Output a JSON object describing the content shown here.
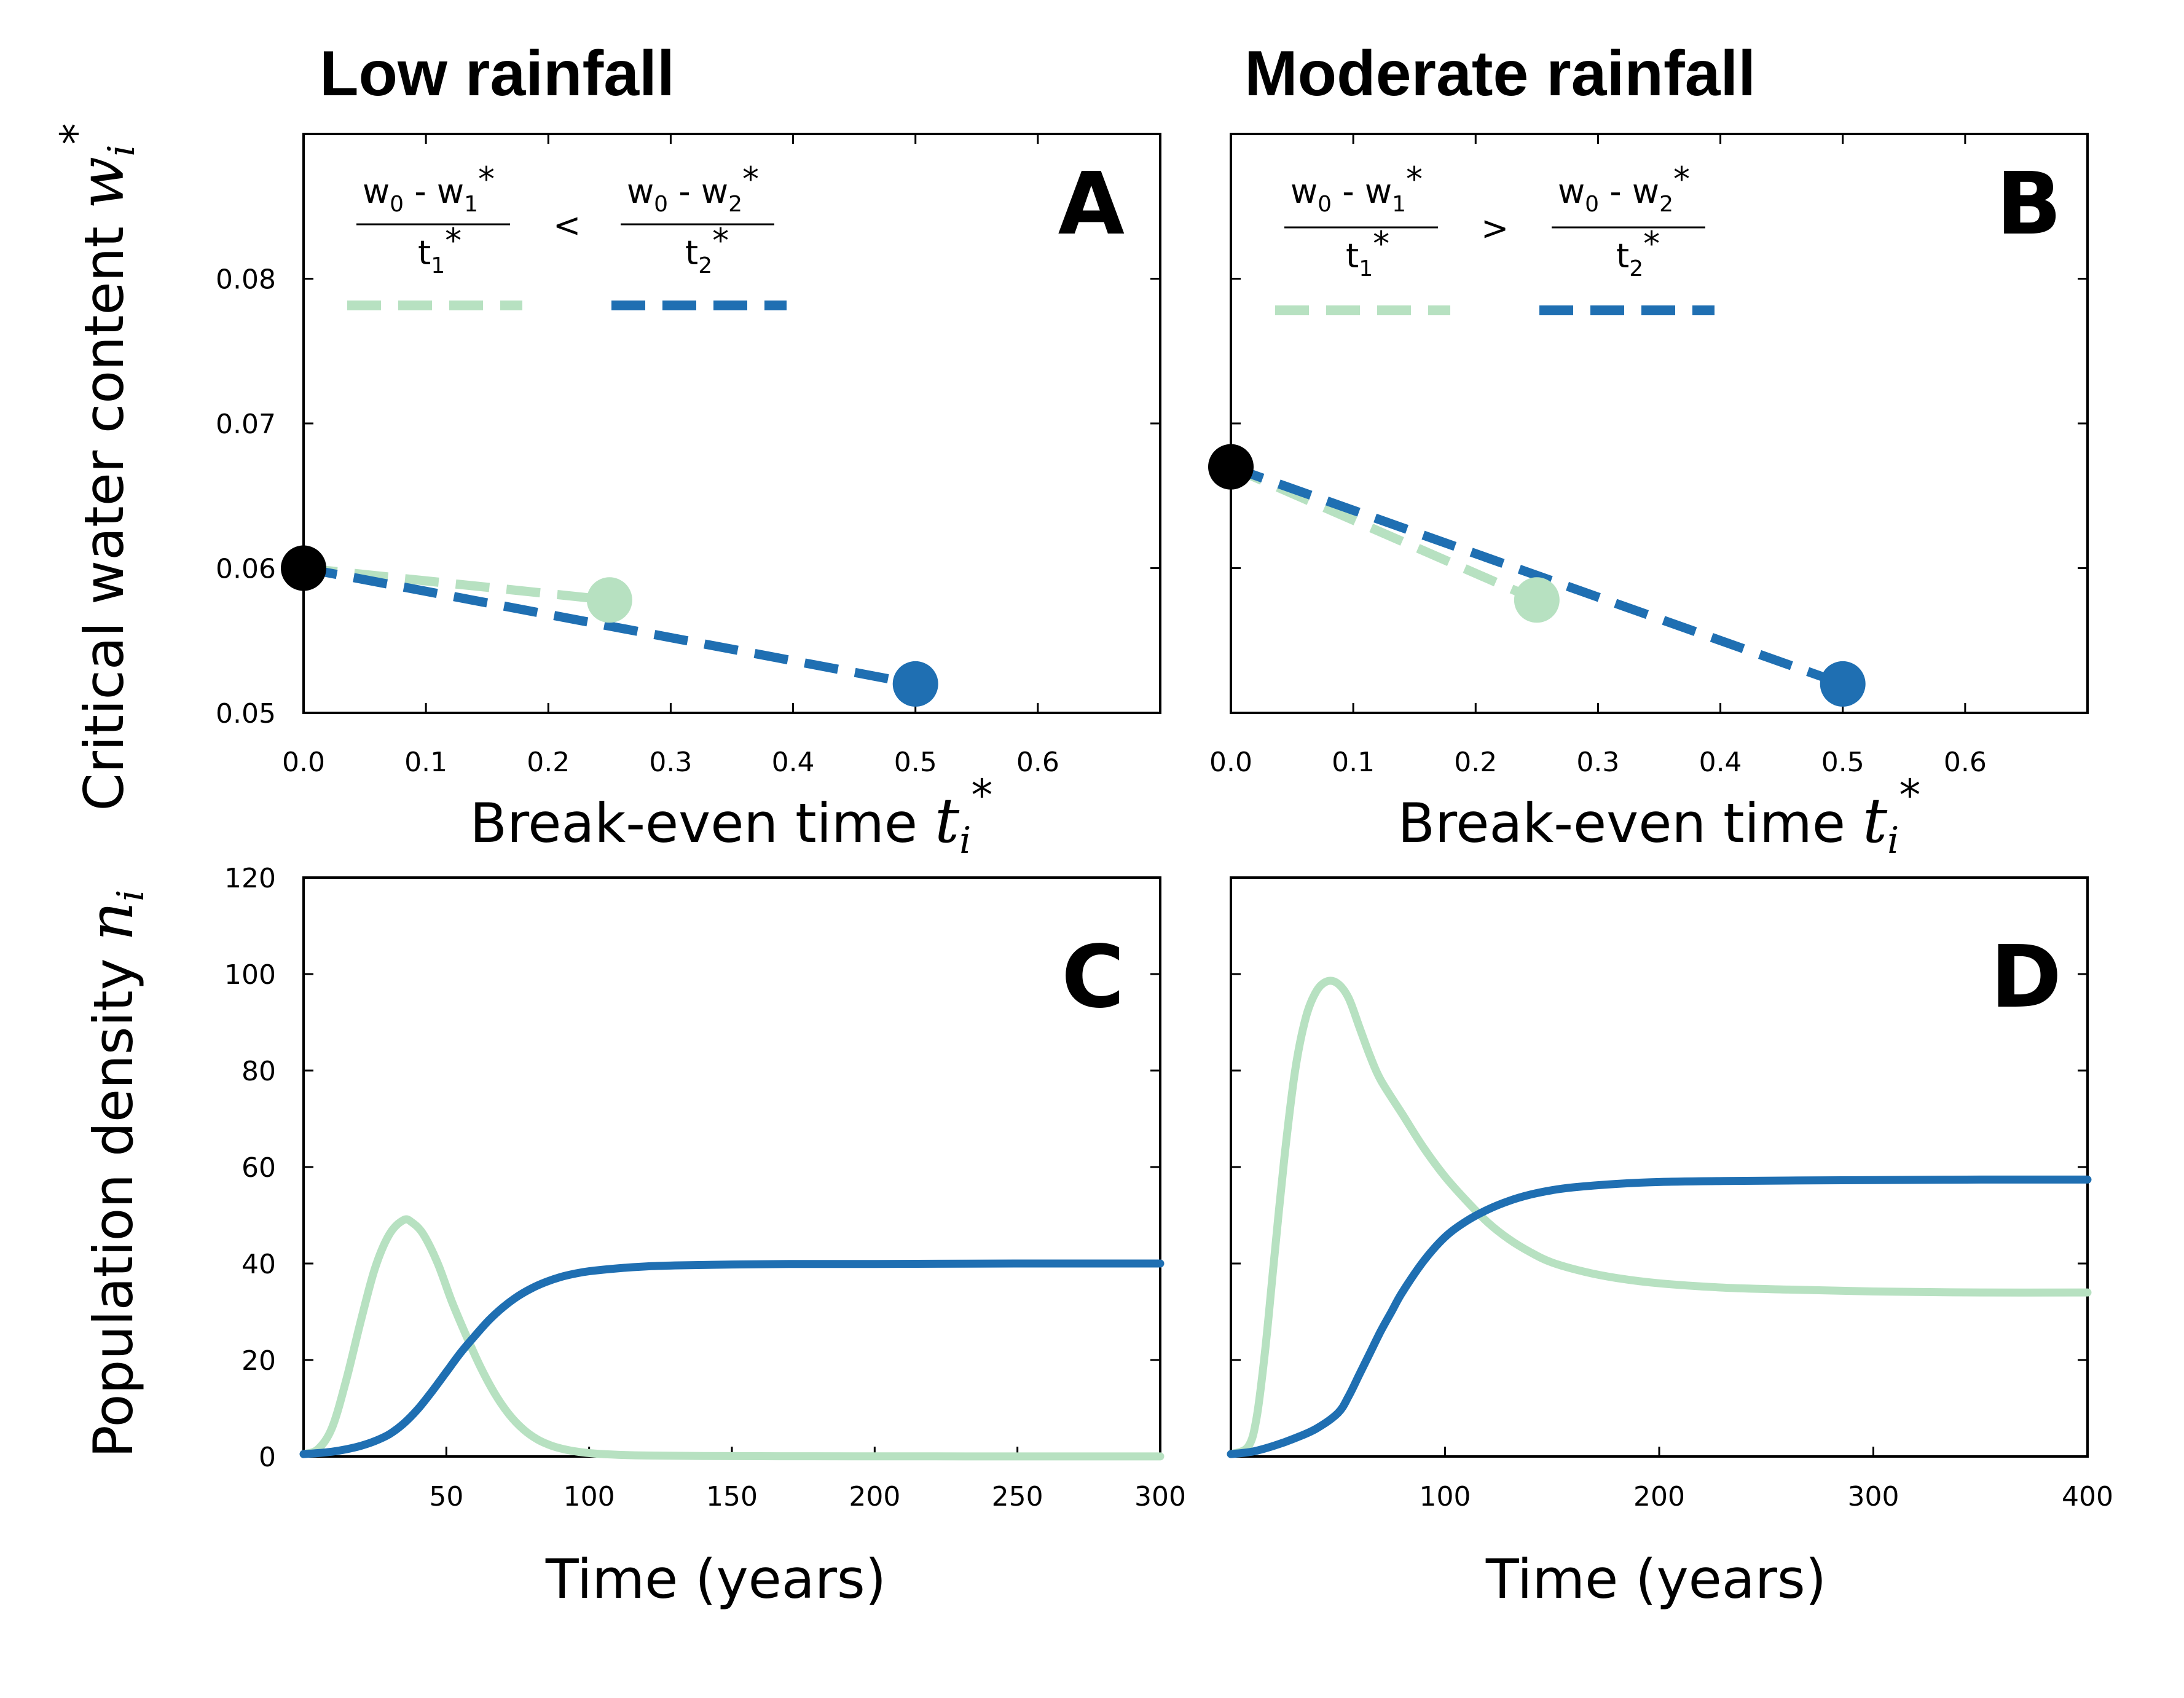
{
  "titles": {
    "left": "Low rainfall",
    "right": "Moderate rainfall"
  },
  "axis_labels": {
    "top_y": "Critical water content",
    "top_y_symbol": "w",
    "top_y_sub": "i",
    "top_y_sup": "*",
    "top_x": "Break-even time",
    "top_x_symbol": "t",
    "top_x_sub": "i",
    "top_x_sup": "*",
    "bottom_y": "Population density",
    "bottom_y_symbol": "n",
    "bottom_y_sub": "i",
    "bottom_x": "Time (years)"
  },
  "legend": {
    "frac1": {
      "num_a": "w",
      "num_a_sub": "0",
      "num_b": " - w",
      "num_b_sub": "1",
      "num_sup": "*",
      "den": "t",
      "den_sub": "1",
      "den_sup": "*"
    },
    "frac2": {
      "num_a": "w",
      "num_a_sub": "0",
      "num_b": " - w",
      "num_b_sub": "2",
      "num_sup": "*",
      "den": "t",
      "den_sub": "2",
      "den_sup": "*"
    },
    "compare_A": "<",
    "compare_B": ">"
  },
  "colors": {
    "species1": "#b7e1c1",
    "species2": "#1f6fb2",
    "origin": "#000000"
  },
  "chart_data": [
    {
      "panel": "A",
      "type": "scatter",
      "xlim": [
        0,
        0.7
      ],
      "ylim": [
        0.05,
        0.09
      ],
      "xticks": [
        0.0,
        0.1,
        0.2,
        0.3,
        0.4,
        0.5,
        0.6
      ],
      "yticks": [
        0.05,
        0.06,
        0.07,
        0.08
      ],
      "origin": {
        "x": 0.0,
        "y": 0.06
      },
      "series": [
        {
          "point": {
            "x": 0.25,
            "y": 0.0578
          }
        },
        {
          "point": {
            "x": 0.5,
            "y": 0.052
          }
        }
      ]
    },
    {
      "panel": "B",
      "type": "scatter",
      "xlim": [
        0,
        0.7
      ],
      "ylim": [
        0.05,
        0.09
      ],
      "xticks": [
        0.0,
        0.1,
        0.2,
        0.3,
        0.4,
        0.5,
        0.6
      ],
      "yticks": [
        0.05,
        0.06,
        0.07,
        0.08
      ],
      "origin": {
        "x": 0.0,
        "y": 0.067
      },
      "series": [
        {
          "point": {
            "x": 0.25,
            "y": 0.0578
          }
        },
        {
          "point": {
            "x": 0.5,
            "y": 0.052
          }
        }
      ]
    },
    {
      "panel": "C",
      "type": "line",
      "xlim": [
        0,
        300
      ],
      "ylim": [
        0,
        120
      ],
      "xticks": [
        50,
        100,
        150,
        200,
        250,
        300
      ],
      "yticks": [
        0,
        20,
        40,
        60,
        80,
        100,
        120
      ],
      "series": [
        {
          "x": [
            0,
            5,
            10,
            15,
            20,
            25,
            30,
            35,
            38,
            42,
            47,
            52,
            57,
            62,
            67,
            72,
            77,
            82,
            87,
            92,
            97,
            102,
            110,
            120,
            140,
            170,
            200,
            250,
            300
          ],
          "y": [
            0.5,
            1.5,
            6,
            16,
            28,
            39,
            46,
            49,
            48.5,
            46,
            40,
            32,
            25,
            18.5,
            13,
            8.7,
            5.6,
            3.5,
            2.2,
            1.4,
            0.9,
            0.6,
            0.35,
            0.2,
            0.1,
            0.05,
            0.03,
            0.02,
            0.02
          ]
        },
        {
          "x": [
            0,
            5,
            10,
            15,
            20,
            25,
            30,
            35,
            40,
            45,
            50,
            55,
            60,
            65,
            70,
            75,
            80,
            85,
            90,
            95,
            100,
            110,
            120,
            130,
            140,
            150,
            170,
            200,
            250,
            300
          ],
          "y": [
            0.5,
            0.7,
            1,
            1.5,
            2.2,
            3.2,
            4.6,
            6.8,
            9.8,
            13.5,
            17.5,
            21.5,
            25,
            28.3,
            31,
            33.2,
            34.9,
            36.2,
            37.2,
            37.9,
            38.4,
            39,
            39.4,
            39.6,
            39.7,
            39.8,
            39.9,
            39.9,
            40,
            40
          ]
        }
      ]
    },
    {
      "panel": "D",
      "type": "line",
      "xlim": [
        0,
        400
      ],
      "ylim": [
        0,
        120
      ],
      "xticks": [
        100,
        200,
        300,
        400
      ],
      "yticks": [
        0,
        20,
        40,
        60,
        80,
        100,
        120
      ],
      "series": [
        {
          "x": [
            0,
            8,
            12,
            16,
            20,
            25,
            30,
            35,
            40,
            45,
            50,
            55,
            60,
            65,
            70,
            80,
            90,
            100,
            110,
            120,
            130,
            140,
            150,
            165,
            180,
            200,
            230,
            260,
            300,
            350,
            400
          ],
          "y": [
            0.5,
            2,
            8,
            22,
            40,
            62,
            80,
            91,
            96.5,
            98.5,
            98,
            95,
            89,
            83,
            78,
            71,
            64,
            58,
            53,
            48.5,
            45,
            42.3,
            40.2,
            38.3,
            37,
            35.9,
            35,
            34.6,
            34.2,
            34,
            34
          ]
        },
        {
          "x": [
            0,
            10,
            20,
            30,
            40,
            50,
            55,
            60,
            65,
            70,
            75,
            80,
            90,
            100,
            110,
            120,
            130,
            140,
            150,
            160,
            180,
            200,
            230,
            260,
            300,
            350,
            400
          ],
          "y": [
            0.5,
            1,
            2.2,
            3.8,
            5.8,
            9,
            12.5,
            17,
            21.5,
            26,
            30,
            34,
            40.5,
            45.5,
            48.8,
            51.2,
            53,
            54.3,
            55.2,
            55.8,
            56.5,
            56.9,
            57.1,
            57.2,
            57.3,
            57.4,
            57.4
          ]
        }
      ]
    }
  ]
}
